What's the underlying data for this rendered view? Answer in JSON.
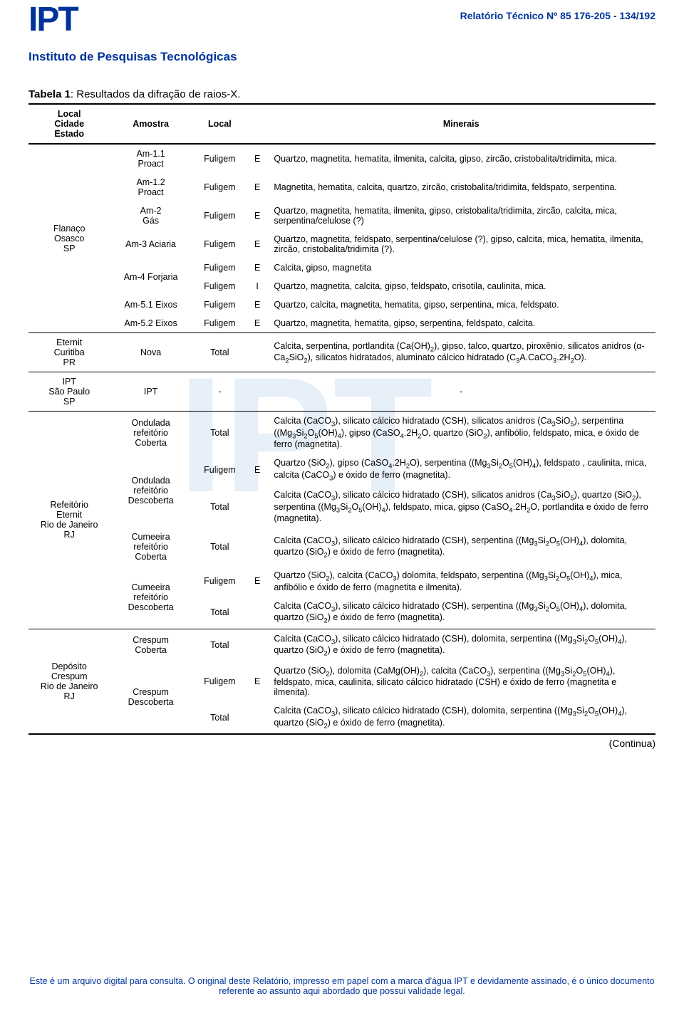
{
  "header": {
    "logo": "IPT",
    "subtitle": "Instituto de Pesquisas Tecnológicas",
    "report_label": "Relatório Técnico Nº 85 176-205 - 134/192"
  },
  "caption": {
    "prefix": "Tabela 1",
    "text": ": Resultados da difração de raios-X."
  },
  "columns": {
    "c1": "Local\nCidade\nEstado",
    "c1_l1": "Local",
    "c1_l2": "Cidade",
    "c1_l3": "Estado",
    "c2": "Amostra",
    "c3": "Local",
    "c4": "",
    "c5": "Minerais"
  },
  "groups": [
    {
      "place_lines": [
        "Flanaço",
        "Osasco",
        "SP"
      ],
      "rows": [
        {
          "amostra_lines": [
            "Am-1.1",
            "Proact"
          ],
          "local": "Fuligem",
          "code": "E",
          "minerals_html": "Quartzo, magnetita, hematita, ilmenita, calcita, gipso, zircão, cristobalita/tridimita, mica."
        },
        {
          "amostra_lines": [
            "Am-1.2",
            "Proact"
          ],
          "local": "Fuligem",
          "code": "E",
          "minerals_html": "Magnetita, hematita, calcita, quartzo, zircão, cristobalita/tridimita, feldspato, serpentina."
        },
        {
          "amostra_lines": [
            "Am-2",
            "Gás"
          ],
          "local": "Fuligem",
          "code": "E",
          "minerals_html": "Quartzo, magnetita, hematita, ilmenita, gipso, cristobalita/tridimita, zircão, calcita, mica, serpentina/celulose (?)"
        },
        {
          "amostra_lines": [
            "Am-3 Aciaria"
          ],
          "local": "Fuligem",
          "code": "E",
          "minerals_html": "Quartzo, magnetita, feldspato, serpentina/celulose (?), gipso, calcita, mica, hematita, ilmenita, zircão, cristobalita/tridimita (?)."
        },
        {
          "amostra_lines": [
            "Am-4 Forjaria"
          ],
          "sub": [
            {
              "local": "Fuligem",
              "code": "E",
              "minerals_html": "Calcita, gipso, magnetita"
            },
            {
              "local": "Fuligem",
              "code": "I",
              "minerals_html": "Quartzo, magnetita, calcita, gipso, feldspato, crisotila, caulinita, mica."
            }
          ]
        },
        {
          "amostra_lines": [
            "Am-5.1 Eixos"
          ],
          "local": "Fuligem",
          "code": "E",
          "minerals_html": "Quartzo, calcita, magnetita, hematita, gipso, serpentina, mica, feldspato."
        },
        {
          "amostra_lines": [
            "Am-5.2 Eixos"
          ],
          "local": "Fuligem",
          "code": "E",
          "minerals_html": "Quartzo, magnetita, hematita, gipso, serpentina, feldspato, calcita."
        }
      ]
    },
    {
      "place_lines": [
        "Eternit",
        "Curitiba",
        "PR"
      ],
      "rows": [
        {
          "amostra_lines": [
            "Nova"
          ],
          "local": "Total",
          "code": "",
          "minerals_html": "Calcita, serpentina, portlandita (Ca(OH)<sub>2</sub>), gipso, talco, quartzo, piroxênio, silicatos anidros (α-Ca<sub>2</sub>SiO<sub>2</sub>), silicatos hidratados, aluminato cálcico hidratado (C<sub>3</sub>A.CaCO<sub>3</sub>.2H<sub>2</sub>O)."
        }
      ]
    },
    {
      "place_lines": [
        "IPT",
        "São Paulo",
        "SP"
      ],
      "rows": [
        {
          "amostra_lines": [
            "IPT"
          ],
          "local": "-",
          "code": "",
          "minerals_html": "-",
          "center": true
        }
      ]
    },
    {
      "place_lines": [
        "Refeitório",
        "Eternit",
        "Rio de Janeiro",
        "RJ"
      ],
      "rows": [
        {
          "amostra_lines": [
            "Ondulada",
            "refeitório",
            "Coberta"
          ],
          "local": "Total",
          "code": "",
          "minerals_html": "Calcita (CaCO<sub>3</sub>), silicato cálcico hidratado (CSH), silicatos anidros (Ca<sub>3</sub>SiO<sub>5</sub>), serpentina ((Mg<sub>3</sub>Si<sub>2</sub>O<sub>5</sub>(OH)<sub>4</sub>), gipso (CaSO<sub>4</sub>.2H<sub>2</sub>O, quartzo (SiO<sub>2</sub>), anfibólio, feldspato, mica, e óxido de ferro (magnetita)."
        },
        {
          "amostra_lines": [
            "Ondulada",
            "refeitório",
            "Descoberta"
          ],
          "sub": [
            {
              "local": "Fuligem",
              "code": "E",
              "minerals_html": "Quartzo (SiO<sub>2</sub>), gipso (CaSO<sub>4</sub>.2H<sub>2</sub>O), serpentina ((Mg<sub>3</sub>Si<sub>2</sub>O<sub>5</sub>(OH)<sub>4</sub>), feldspato , caulinita, mica, calcita (CaCO<sub>3</sub>) e óxido de ferro (magnetita)."
            },
            {
              "local": "Total",
              "code": "",
              "minerals_html": "Calcita (CaCO<sub>3</sub>), silicato cálcico hidratado (CSH), silicatos anidros (Ca<sub>3</sub>SiO<sub>5</sub>), quartzo (SiO<sub>2</sub>), serpentina ((Mg<sub>3</sub>Si<sub>2</sub>O<sub>5</sub>(OH)<sub>4</sub>), feldspato, mica, gipso (CaSO<sub>4</sub>.2H<sub>2</sub>O, portlandita e óxido de ferro (magnetita)."
            }
          ]
        },
        {
          "amostra_lines": [
            "Cumeeira",
            "refeitório",
            "Coberta"
          ],
          "local": "Total",
          "code": "",
          "minerals_html": "Calcita (CaCO<sub>3</sub>), silicato cálcico hidratado (CSH), serpentina ((Mg<sub>3</sub>Si<sub>2</sub>O<sub>5</sub>(OH)<sub>4</sub>), dolomita, quartzo (SiO<sub>2</sub>) e óxido de ferro (magnetita)."
        },
        {
          "amostra_lines": [
            "Cumeeira",
            "refeitório",
            "Descoberta"
          ],
          "sub": [
            {
              "local": "Fuligem",
              "code": "E",
              "minerals_html": "Quartzo (SiO<sub>2</sub>), calcita (CaCO<sub>3</sub>) dolomita, feldspato, serpentina ((Mg<sub>3</sub>Si<sub>2</sub>O<sub>5</sub>(OH)<sub>4</sub>), mica, anfibólio e óxido de ferro (magnetita e ilmenita)."
            },
            {
              "local": "Total",
              "code": "",
              "minerals_html": "Calcita (CaCO<sub>3</sub>), silicato cálcico hidratado (CSH), serpentina ((Mg<sub>3</sub>Si<sub>2</sub>O<sub>5</sub>(OH)<sub>4</sub>), dolomita, quartzo (SiO<sub>2</sub>) e óxido de ferro (magnetita)."
            }
          ]
        }
      ]
    },
    {
      "place_lines": [
        "Depósito",
        "Crespum",
        "Rio de Janeiro",
        "RJ"
      ],
      "rows": [
        {
          "amostra_lines": [
            "Crespum",
            "Coberta"
          ],
          "local": "Total",
          "code": "",
          "minerals_html": "Calcita (CaCO<sub>3</sub>), silicato cálcico hidratado (CSH), dolomita, serpentina ((Mg<sub>3</sub>Si<sub>2</sub>O<sub>5</sub>(OH)<sub>4</sub>), quartzo (SiO<sub>2</sub>) e óxido de ferro (magnetita)."
        },
        {
          "amostra_lines": [
            "Crespum",
            "Descoberta"
          ],
          "sub": [
            {
              "local": "Fuligem",
              "code": "E",
              "minerals_html": "Quartzo (SiO<sub>2</sub>), dolomita (CaMg(OH)<sub>2</sub>), calcita (CaCO<sub>3</sub>), serpentina ((Mg<sub>3</sub>Si<sub>2</sub>O<sub>5</sub>(OH)<sub>4</sub>), feldspato, mica, caulinita, silicato cálcico hidratado (CSH) e óxido de ferro (magnetita e ilmenita)."
            },
            {
              "local": "Total",
              "code": "",
              "minerals_html": "Calcita (CaCO<sub>3</sub>), silicato cálcico hidratado (CSH), dolomita, serpentina ((Mg<sub>3</sub>Si<sub>2</sub>O<sub>5</sub>(OH)<sub>4</sub>), quartzo (SiO<sub>2</sub>) e óxido de ferro (magnetita)."
            }
          ]
        }
      ]
    }
  ],
  "continua": "(Continua)",
  "footer": "Este é um arquivo digital para consulta. O original deste Relatório, impresso em papel com a marca d'água IPT e devidamente assinado, é o único documento referente ao assunto aqui abordado que possui validade legal.",
  "colors": {
    "brand": "#003399",
    "watermark": "#bcd4ef"
  },
  "column_widths_pct": [
    13,
    13,
    9,
    3,
    62
  ]
}
